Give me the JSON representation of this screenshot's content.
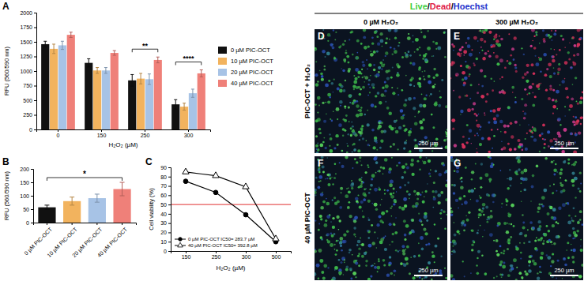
{
  "chart_data": [
    {
      "type": "bar",
      "title": "A",
      "x_label": "H₂O₂ (µM)",
      "y_label": "RFU (560/590 nm)",
      "categories": [
        "0",
        "150",
        "250",
        "300"
      ],
      "series": [
        {
          "name": "0 µM PIC-OCT",
          "color": "#111111",
          "values": [
            1460,
            1140,
            840,
            430
          ],
          "errors": [
            50,
            70,
            100,
            80
          ]
        },
        {
          "name": "10 µM PIC-OCT",
          "color": "#f2b35e",
          "values": [
            1380,
            1010,
            870,
            390
          ],
          "errors": [
            80,
            50,
            90,
            60
          ]
        },
        {
          "name": "20 µM PIC-OCT",
          "color": "#a7c3e6",
          "values": [
            1440,
            1010,
            860,
            620
          ],
          "errors": [
            70,
            50,
            90,
            70
          ]
        },
        {
          "name": "40 µM PIC-OCT",
          "color": "#ef8079",
          "values": [
            1620,
            1310,
            1190,
            960
          ],
          "errors": [
            45,
            40,
            50,
            60
          ]
        }
      ],
      "ylim": [
        0,
        2000
      ],
      "yticks": [
        0,
        250,
        500,
        750,
        1000,
        1250,
        1500,
        1750,
        2000
      ],
      "legend": "right",
      "annotations": [
        {
          "text": "**",
          "category": "250",
          "between": [
            "0 µM PIC-OCT",
            "40 µM PIC-OCT"
          ]
        },
        {
          "text": "****",
          "category": "300",
          "between": [
            "0 µM PIC-OCT",
            "40 µM PIC-OCT"
          ]
        }
      ]
    },
    {
      "type": "bar",
      "title": "B",
      "y_label": "RFU (560/590 nm)",
      "categories": [
        "0 µM PIC-OCT",
        "10 µM PIC-OCT",
        "20 µM PIC-OCT",
        "40 µM PIC-OCT"
      ],
      "values": [
        57,
        80,
        91,
        125
      ],
      "errors": [
        8,
        15,
        15,
        25
      ],
      "colors": [
        "#111111",
        "#f2b35e",
        "#a7c3e6",
        "#ef8079"
      ],
      "ylim": [
        0,
        200
      ],
      "yticks": [
        0,
        50,
        100,
        150,
        200
      ],
      "annotations": [
        {
          "text": "*",
          "between": [
            "0 µM PIC-OCT",
            "40 µM PIC-OCT"
          ]
        }
      ]
    },
    {
      "type": "line",
      "title": "C",
      "x_label": "H₂O₂ (µM)",
      "y_label": "Cell viability (%)",
      "categories": [
        "150",
        "250",
        "300",
        "500"
      ],
      "series": [
        {
          "name": "0 µM PIC-OCT IC50= 283.7 µM",
          "color": "#000000",
          "marker": "circle",
          "values": [
            75,
            63,
            39,
            10
          ]
        },
        {
          "name": "40 µM PIC-OCT IC50= 392.8 µM",
          "color": "#000000",
          "marker": "open-triangle",
          "values": [
            85,
            81,
            69,
            13
          ]
        }
      ],
      "ylim": [
        0,
        90
      ],
      "yticks": [
        0,
        10,
        20,
        30,
        40,
        50,
        60,
        70,
        80,
        90
      ],
      "legend": "lower left",
      "reference_line": {
        "value": 50,
        "color": "#e03030"
      }
    }
  ],
  "micrographs": {
    "header": {
      "parts": [
        {
          "text": "Live",
          "color": "#3fcf3f"
        },
        {
          "text": "/",
          "color": "#000000"
        },
        {
          "text": "Dead",
          "color": "#e0204a"
        },
        {
          "text": "/",
          "color": "#000000"
        },
        {
          "text": "Hoechst",
          "color": "#2233cc"
        }
      ]
    },
    "columns": [
      "0 µM H₂O₂",
      "300 µM H₂O₂"
    ],
    "rows": [
      "PIC-OCT + H₂O₂",
      "40 µM PIC-OCT"
    ],
    "panels": [
      {
        "label": "D",
        "scale_bar": "250 µm"
      },
      {
        "label": "E",
        "scale_bar": "250 µm"
      },
      {
        "label": "F",
        "scale_bar": "250 µm"
      },
      {
        "label": "G",
        "scale_bar": "250 µm"
      }
    ]
  }
}
